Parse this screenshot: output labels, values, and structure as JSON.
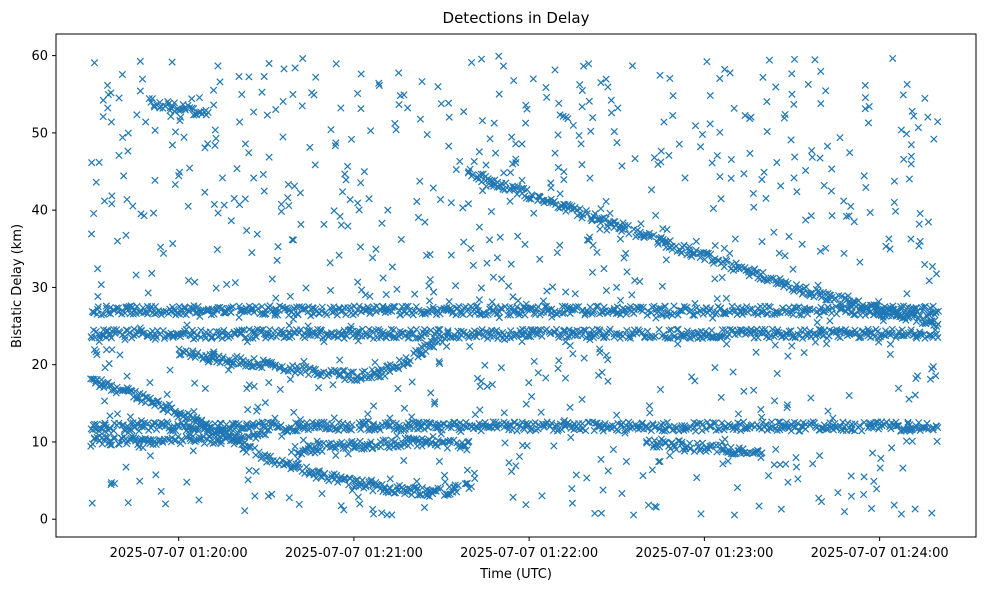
{
  "chart_data": {
    "type": "scatter",
    "title": "Detections in Delay",
    "xlabel": "Time (UTC)",
    "ylabel": "Bistatic Delay (km)",
    "marker": "x",
    "color": "#1f77b4",
    "grid": false,
    "legend": "none",
    "xlim": [
      "2025-07-07 01:19:18",
      "2025-07-07 01:24:33"
    ],
    "ylim": [
      -2.3,
      62.8
    ],
    "x_ticks": [
      "2025-07-07 01:20:00",
      "2025-07-07 01:21:00",
      "2025-07-07 01:22:00",
      "2025-07-07 01:23:00",
      "2025-07-07 01:24:00"
    ],
    "y_ticks": [
      0,
      10,
      20,
      30,
      40,
      50,
      60
    ],
    "tracks": [
      {
        "x": [
          "2025-07-07 01:19:30",
          "2025-07-07 01:19:50",
          "2025-07-07 01:20:10",
          "2025-07-07 01:20:30",
          "2025-07-07 01:20:50",
          "2025-07-07 01:21:10",
          "2025-07-07 01:21:30",
          "2025-07-07 01:21:40"
        ],
        "y": [
          18,
          15.5,
          12,
          8,
          5.5,
          4,
          3.5,
          4.5
        ]
      },
      {
        "x": [
          "2025-07-07 01:21:38",
          "2025-07-07 01:22:00",
          "2025-07-07 01:22:30",
          "2025-07-07 01:23:00",
          "2025-07-07 01:23:30",
          "2025-07-07 01:24:00",
          "2025-07-07 01:24:20"
        ],
        "y": [
          45,
          42,
          38,
          34,
          30,
          27,
          25.5
        ]
      },
      {
        "x": [
          "2025-07-07 01:20:00",
          "2025-07-07 01:20:20",
          "2025-07-07 01:20:40",
          "2025-07-07 01:21:00",
          "2025-07-07 01:21:10",
          "2025-07-07 01:21:20",
          "2025-07-07 01:21:30"
        ],
        "y": [
          21.5,
          20.5,
          19.5,
          18.5,
          19,
          21,
          23.5
        ]
      },
      {
        "x": [
          "2025-07-07 01:20:40",
          "2025-07-07 01:21:00",
          "2025-07-07 01:21:20",
          "2025-07-07 01:21:40"
        ],
        "y": [
          9,
          9.5,
          10,
          9.5
        ]
      },
      {
        "x": [
          "2025-07-07 01:19:30",
          "2025-07-07 01:20:30"
        ],
        "y": [
          10,
          10.5
        ]
      },
      {
        "x": [
          "2025-07-07 01:19:30",
          "2025-07-07 01:24:20"
        ],
        "y": [
          27,
          27
        ]
      },
      {
        "x": [
          "2025-07-07 01:19:30",
          "2025-07-07 01:24:20"
        ],
        "y": [
          24,
          24
        ]
      },
      {
        "x": [
          "2025-07-07 01:19:30",
          "2025-07-07 01:24:20"
        ],
        "y": [
          12,
          12
        ]
      },
      {
        "x": [
          "2025-07-07 01:19:50",
          "2025-07-07 01:20:10"
        ],
        "y": [
          54,
          52.5
        ]
      },
      {
        "x": [
          "2025-07-07 01:22:40",
          "2025-07-07 01:23:20"
        ],
        "y": [
          10,
          8.5
        ]
      }
    ]
  }
}
